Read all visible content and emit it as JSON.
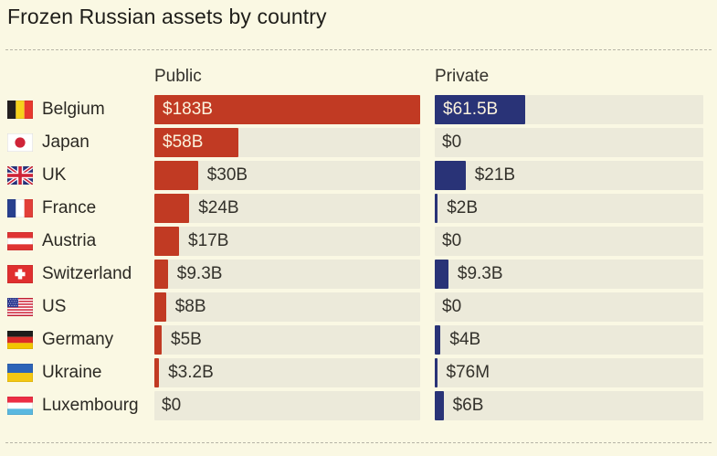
{
  "title": "Frozen Russian assets by country",
  "column_headers": {
    "public": "Public",
    "private": "Private"
  },
  "colors": {
    "background": "#faf8e3",
    "bar_track": "#eceada",
    "public_bar": "#c13a23",
    "private_bar": "#293377",
    "value_inside_text": "#fbf2dd",
    "value_outside_text": "#33312b",
    "title_text": "#1f1e1a",
    "dashed_rule": "#b6b4a6"
  },
  "chart_data": {
    "type": "bar",
    "orientation": "horizontal",
    "title": "Frozen Russian assets by country",
    "unit": "USD billions",
    "axis_max_billions": 183,
    "grid": false,
    "legend_position": "column-headers",
    "series_names": [
      "Public",
      "Private"
    ],
    "rows": [
      {
        "country": "Belgium",
        "flag": "flag-belgium-icon",
        "public_value_billions": 183,
        "public_label": "$183B",
        "private_value_billions": 61.5,
        "private_label": "$61.5B"
      },
      {
        "country": "Japan",
        "flag": "flag-japan-icon",
        "public_value_billions": 58,
        "public_label": "$58B",
        "private_value_billions": 0,
        "private_label": "$0"
      },
      {
        "country": "UK",
        "flag": "flag-uk-icon",
        "public_value_billions": 30,
        "public_label": "$30B",
        "private_value_billions": 21,
        "private_label": "$21B"
      },
      {
        "country": "France",
        "flag": "flag-france-icon",
        "public_value_billions": 24,
        "public_label": "$24B",
        "private_value_billions": 2,
        "private_label": "$2B"
      },
      {
        "country": "Austria",
        "flag": "flag-austria-icon",
        "public_value_billions": 17,
        "public_label": "$17B",
        "private_value_billions": 0,
        "private_label": "$0"
      },
      {
        "country": "Switzerland",
        "flag": "flag-switzerland-icon",
        "public_value_billions": 9.3,
        "public_label": "$9.3B",
        "private_value_billions": 9.3,
        "private_label": "$9.3B"
      },
      {
        "country": "US",
        "flag": "flag-us-icon",
        "public_value_billions": 8,
        "public_label": "$8B",
        "private_value_billions": 0,
        "private_label": "$0"
      },
      {
        "country": "Germany",
        "flag": "flag-germany-icon",
        "public_value_billions": 5,
        "public_label": "$5B",
        "private_value_billions": 4,
        "private_label": "$4B"
      },
      {
        "country": "Ukraine",
        "flag": "flag-ukraine-icon",
        "public_value_billions": 3.2,
        "public_label": "$3.2B",
        "private_value_billions": 0.076,
        "private_label": "$76M"
      },
      {
        "country": "Luxembourg",
        "flag": "flag-luxembourg-icon",
        "public_value_billions": 0,
        "public_label": "$0",
        "private_value_billions": 6,
        "private_label": "$6B"
      }
    ]
  }
}
